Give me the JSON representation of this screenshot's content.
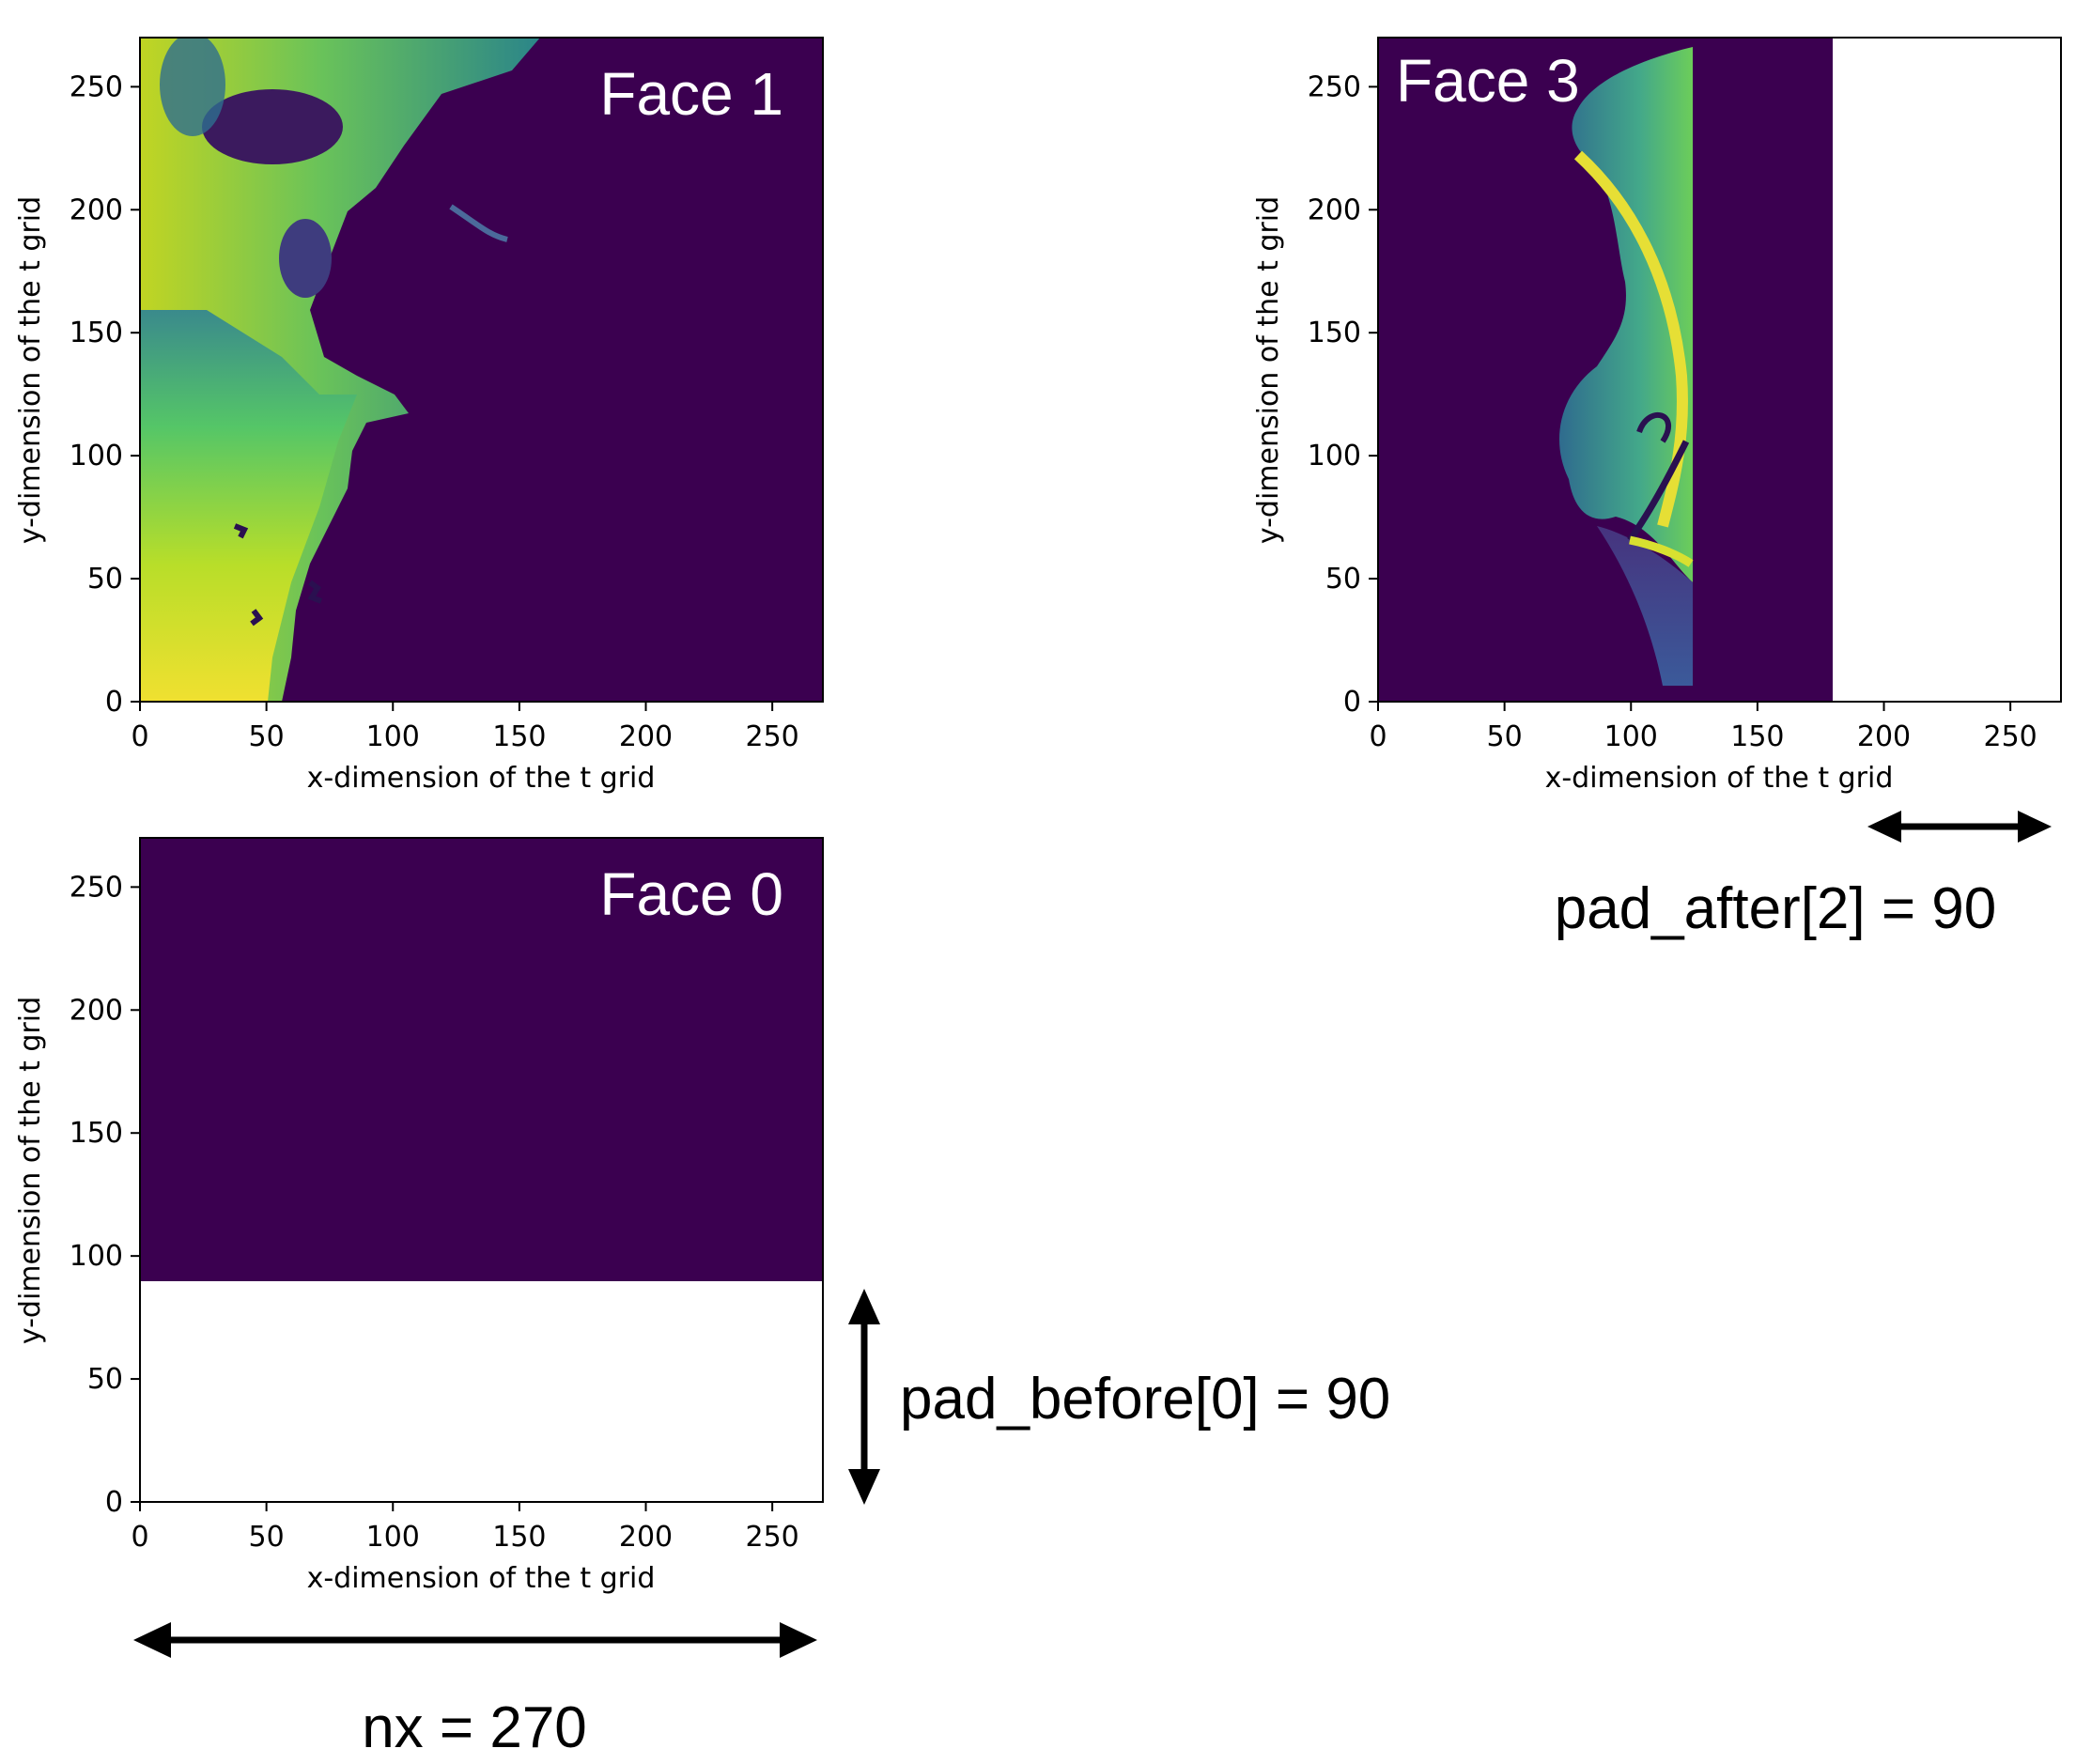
{
  "colors": {
    "background": "#3b0050",
    "page": "#ffffff",
    "annotation": "#000000",
    "axis": "#000000"
  },
  "annotations": {
    "pad_after": "pad_after[2] = 90",
    "pad_before": "pad_before[0] = 90",
    "nx": "nx = 270"
  },
  "chart_data": [
    {
      "type": "heatmap",
      "title": "Face 1",
      "xlabel": "x-dimension of the t grid",
      "ylabel": "y-dimension of the t grid",
      "xlim": [
        0,
        270
      ],
      "ylim": [
        0,
        270
      ],
      "xticks": [
        0,
        50,
        100,
        150,
        200,
        250
      ],
      "yticks": [
        0,
        50,
        100,
        150,
        200,
        250
      ],
      "padding": null,
      "field": "land-to-west; values high near x=0, falling to background beyond x≈60–150"
    },
    {
      "type": "heatmap",
      "title": "Face 3",
      "xlabel": "x-dimension of the t grid",
      "ylabel": "y-dimension of the t grid",
      "xlim": [
        0,
        270
      ],
      "ylim": [
        0,
        270
      ],
      "xticks": [
        0,
        50,
        100,
        150,
        200,
        250
      ],
      "yticks": [
        0,
        50,
        100,
        150,
        200,
        250
      ],
      "padding": {
        "axis": "x",
        "from": 180,
        "to": 270
      },
      "field": "coastal feature between x≈70 and x≈125, bright ridge near x≈120"
    },
    {
      "type": "heatmap",
      "title": "Face 0",
      "xlabel": "x-dimension of the t grid",
      "ylabel": "y-dimension of the t grid",
      "xlim": [
        0,
        270
      ],
      "ylim": [
        0,
        270
      ],
      "xticks": [
        0,
        50,
        100,
        150,
        200,
        250
      ],
      "yticks": [
        0,
        50,
        100,
        150,
        200,
        250
      ],
      "padding": {
        "axis": "y",
        "from": 0,
        "to": 90
      },
      "field": "uniform background"
    }
  ]
}
